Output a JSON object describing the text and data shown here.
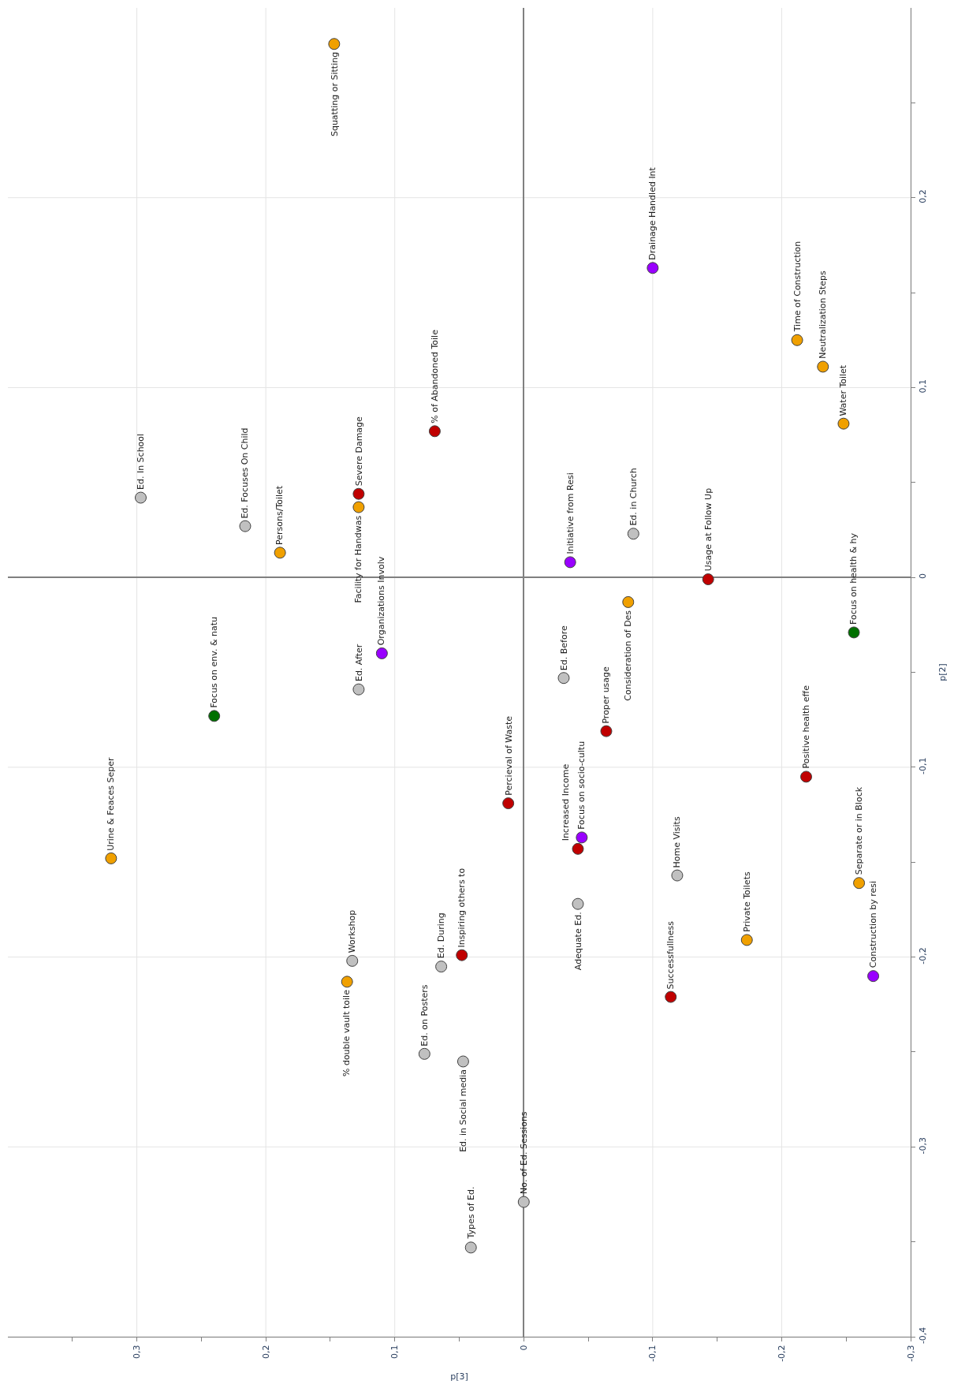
{
  "chart_data": {
    "type": "scatter",
    "xlabel": "p[3]",
    "ylabel": "p[2]",
    "xlim": [
      0.4,
      -0.3
    ],
    "ylim": [
      -0.4,
      0.3
    ],
    "xticks": [
      {
        "value": 0.35,
        "label": null
      },
      {
        "value": 0.3,
        "label": "0,3"
      },
      {
        "value": 0.25,
        "label": null
      },
      {
        "value": 0.2,
        "label": "0,2"
      },
      {
        "value": 0.15,
        "label": null
      },
      {
        "value": 0.1,
        "label": "0,1"
      },
      {
        "value": 0.05,
        "label": null
      },
      0,
      {
        "value": -0.05,
        "label": null
      },
      {
        "value": -0.1,
        "label": "-0,1"
      },
      {
        "value": -0.15,
        "label": null
      },
      {
        "value": -0.2,
        "label": "-0,2"
      },
      {
        "value": -0.25,
        "label": null
      },
      {
        "value": -0.3,
        "label": "-0,3"
      }
    ],
    "yticks": [
      {
        "value": 0.25,
        "label": null
      },
      {
        "value": 0.2,
        "label": "0,2"
      },
      {
        "value": 0.15,
        "label": null
      },
      {
        "value": 0.1,
        "label": "0,1"
      },
      {
        "value": 0.05,
        "label": null
      },
      0,
      {
        "value": -0.05,
        "label": null
      },
      {
        "value": -0.1,
        "label": "-0,1"
      },
      {
        "value": -0.15,
        "label": null
      },
      {
        "value": -0.2,
        "label": "-0,2"
      },
      {
        "value": -0.25,
        "label": null
      },
      {
        "value": -0.3,
        "label": "-0,3"
      },
      {
        "value": -0.35,
        "label": null
      },
      {
        "value": -0.4,
        "label": "-0,4"
      }
    ],
    "grid": true,
    "marker": "circle",
    "series": [
      {
        "color": "#c0c0c0",
        "x": [
          0.297,
          0.216,
          0.128,
          -0.085,
          -0.031,
          -0.042,
          -0.119,
          0.0,
          0.041,
          0.133,
          0.064,
          0.077,
          0.047
        ],
        "values": [
          0.042,
          0.027,
          -0.059,
          0.023,
          -0.053,
          -0.172,
          -0.157,
          -0.329,
          -0.353,
          -0.202,
          -0.205,
          -0.251,
          -0.255
        ]
      },
      {
        "color": "#c00000",
        "x": [
          0.069,
          0.128,
          -0.143,
          -0.064,
          0.012,
          -0.042,
          -0.219,
          -0.114,
          0.048
        ],
        "values": [
          0.077,
          0.044,
          -0.001,
          -0.081,
          -0.119,
          -0.143,
          -0.105,
          -0.221,
          -0.199
        ]
      },
      {
        "color": "#f0a000",
        "x": [
          0.147,
          0.189,
          0.128,
          -0.212,
          -0.232,
          -0.248,
          -0.081,
          -0.26,
          -0.173,
          0.32,
          0.137
        ],
        "values": [
          0.281,
          0.013,
          0.037,
          0.125,
          0.111,
          0.081,
          -0.013,
          -0.161,
          -0.191,
          -0.148,
          -0.213
        ]
      },
      {
        "color": "#9900ff",
        "x": [
          0.11,
          -0.1,
          -0.036,
          -0.045,
          -0.271
        ],
        "values": [
          -0.04,
          0.163,
          0.008,
          -0.137,
          -0.21
        ]
      },
      {
        "color": "#007000",
        "x": [
          0.24,
          -0.256
        ],
        "values": [
          -0.073,
          -0.029
        ]
      }
    ],
    "annotations": [
      {
        "text": "Ed. In School",
        "x": 0.297,
        "y": 0.042
      },
      {
        "text": "Ed. Focuses On Child",
        "x": 0.216,
        "y": 0.027
      },
      {
        "text": "Ed. After",
        "x": 0.128,
        "y": -0.059
      },
      {
        "text": "Ed. in Church",
        "x": -0.085,
        "y": 0.023
      },
      {
        "text": "Ed. Before",
        "x": -0.031,
        "y": -0.053
      },
      {
        "text": "Adequate Ed.",
        "x": -0.042,
        "y": -0.172
      },
      {
        "text": "Home Visits",
        "x": -0.119,
        "y": -0.157
      },
      {
        "text": "No. of Ed. Sessions",
        "x": 0.0,
        "y": -0.329
      },
      {
        "text": "Types of Ed.",
        "x": 0.041,
        "y": -0.353
      },
      {
        "text": "Workshop",
        "x": 0.133,
        "y": -0.202
      },
      {
        "text": "Ed. During",
        "x": 0.064,
        "y": -0.205
      },
      {
        "text": "Ed. on Posters",
        "x": 0.077,
        "y": -0.251
      },
      {
        "text": "Ed. in Social media",
        "x": 0.047,
        "y": -0.255
      },
      {
        "text": "% of Abandoned Toile",
        "x": 0.069,
        "y": 0.077
      },
      {
        "text": "Severe Damage",
        "x": 0.128,
        "y": 0.044
      },
      {
        "text": "Usage at Follow Up",
        "x": -0.143,
        "y": -0.001
      },
      {
        "text": "Proper usage",
        "x": -0.064,
        "y": -0.081
      },
      {
        "text": "Percieval of Waste",
        "x": 0.012,
        "y": -0.119
      },
      {
        "text": "Increased Income",
        "x": -0.042,
        "y": -0.143
      },
      {
        "text": "Positive health effe",
        "x": -0.219,
        "y": -0.105
      },
      {
        "text": "Successfullness",
        "x": -0.114,
        "y": -0.221
      },
      {
        "text": "Inspiring others to",
        "x": 0.048,
        "y": -0.199
      },
      {
        "text": "Squatting or Sitting",
        "x": 0.147,
        "y": 0.281
      },
      {
        "text": "Persons/Toilet",
        "x": 0.189,
        "y": 0.013
      },
      {
        "text": "Facility for Handwas",
        "x": 0.128,
        "y": 0.037
      },
      {
        "text": "Time of Construction",
        "x": -0.212,
        "y": 0.125
      },
      {
        "text": "Neutralization Steps",
        "x": -0.232,
        "y": 0.111
      },
      {
        "text": "Water Toilet",
        "x": -0.248,
        "y": 0.081
      },
      {
        "text": "Consideration of Des",
        "x": -0.081,
        "y": -0.013
      },
      {
        "text": "Separate or in Block",
        "x": -0.26,
        "y": -0.161
      },
      {
        "text": "Private Toilets",
        "x": -0.173,
        "y": -0.191
      },
      {
        "text": "Urine & Feaces Seper",
        "x": 0.32,
        "y": -0.148
      },
      {
        "text": "% double vault toile",
        "x": 0.137,
        "y": -0.213
      },
      {
        "text": "Organizations Involv",
        "x": 0.11,
        "y": -0.04
      },
      {
        "text": "Drainage Handled Int",
        "x": -0.1,
        "y": 0.163
      },
      {
        "text": "Initiative from Resi",
        "x": -0.036,
        "y": 0.008
      },
      {
        "text": "Focus on socio-cultu",
        "x": -0.045,
        "y": -0.137
      },
      {
        "text": "Construction by resi",
        "x": -0.271,
        "y": -0.21
      },
      {
        "text": "Focus on env. & natu",
        "x": 0.24,
        "y": -0.073
      },
      {
        "text": "Focus on health & hy",
        "x": -0.256,
        "y": -0.029
      }
    ]
  }
}
